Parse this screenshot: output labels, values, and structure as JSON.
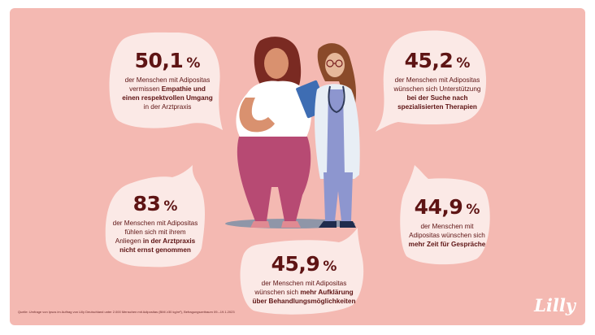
{
  "colors": {
    "background": "#f4b9b2",
    "bubble": "#fbe9e6",
    "text": "#5e1414",
    "logo": "#ffffff"
  },
  "stats": [
    {
      "id": "empathie",
      "value": "50,1",
      "unit": "%",
      "line1": "der Menschen mit Adipositas",
      "pre": "vermissen ",
      "bold": "Empathie und einen respektvollen Umgang",
      "post": " in der Arztpraxis"
    },
    {
      "id": "unterstuetzung",
      "value": "45,2",
      "unit": "%",
      "line1": "der Menschen mit Adipositas",
      "pre": "wünschen sich Unterstützung ",
      "bold": "bei der Suche nach spezialisierten Therapien",
      "post": ""
    },
    {
      "id": "ernst",
      "value": "83",
      "unit": "%",
      "line1": "der Menschen mit Adipositas",
      "pre": "fühlen sich mit ihrem Anliegen ",
      "bold": "in der Arztpraxis nicht ernst genommen",
      "post": ""
    },
    {
      "id": "zeit",
      "value": "44,9",
      "unit": "%",
      "line1": "der Menschen mit",
      "pre": "Adipositas wünschen sich ",
      "bold": "mehr Zeit für Gespräche",
      "post": ""
    },
    {
      "id": "aufklaerung",
      "value": "45,9",
      "unit": "%",
      "line1": "der Menschen mit Adipositas",
      "pre": "wünschen sich ",
      "bold": "mehr Aufklärung über Behandlungsmöglichkeiten",
      "post": ""
    }
  ],
  "footnote": "Quelle: Umfrage von Ipsos im Auftrag von Lilly Deutschland unter 2.000 Menschen mit Adipositas (BMI ≥30 kg/m²), Befragungszeitraum 09.–19.1.2023",
  "logo": "Lilly"
}
